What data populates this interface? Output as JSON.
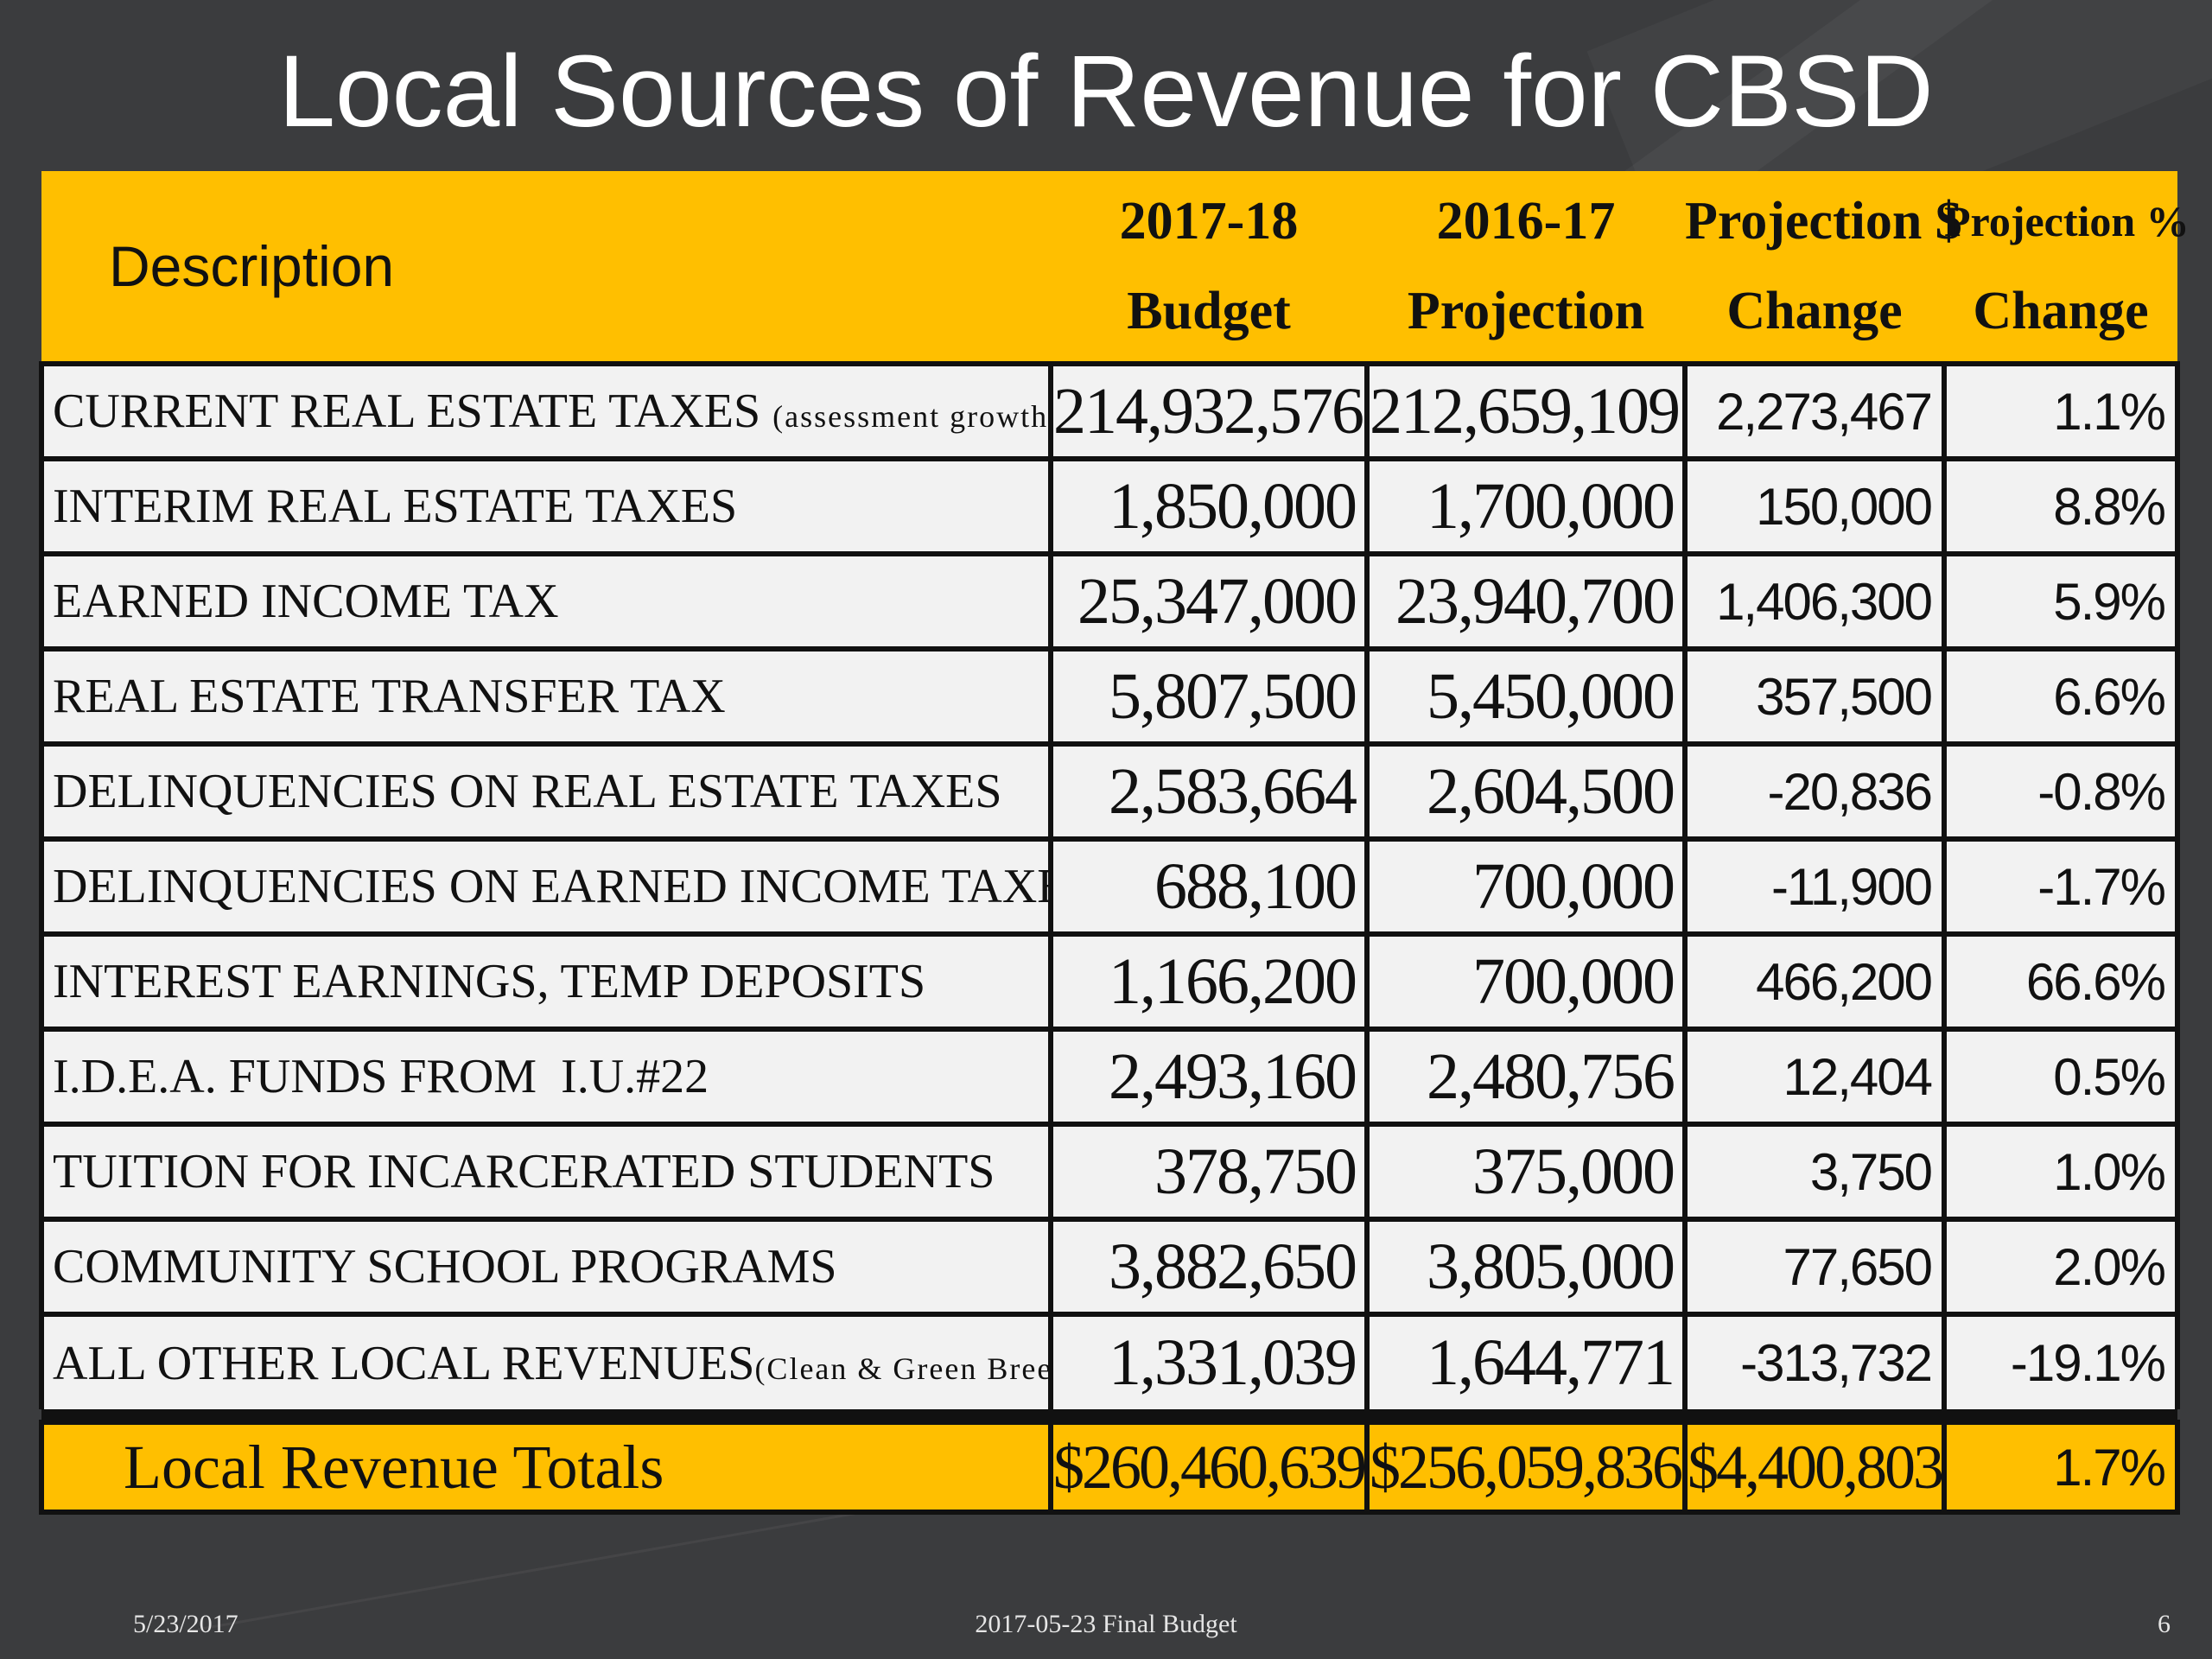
{
  "slide": {
    "title": "Local Sources of Revenue for CBSD"
  },
  "table": {
    "header": {
      "description": "Description",
      "budget_line1": "2017-18",
      "budget_line2": "Budget",
      "projection_line1": "2016-17",
      "projection_line2": "Projection",
      "change_dollar_line1": "Projection $",
      "change_dollar_line2": "Change",
      "change_pct_line1": "Projection %",
      "change_pct_line2": "Change"
    },
    "rows": [
      {
        "description": "CURRENT REAL ESTATE TAXES",
        "note": "(assessment growth)",
        "budget": "214,932,576",
        "projection": "212,659,109",
        "change": "2,273,467",
        "change_pct": "1.1%"
      },
      {
        "description": "INTERIM REAL ESTATE TAXES",
        "note": "",
        "budget": "1,850,000",
        "projection": "1,700,000",
        "change": "150,000",
        "change_pct": "8.8%"
      },
      {
        "description": "EARNED INCOME TAX",
        "note": "",
        "budget": "25,347,000",
        "projection": "23,940,700",
        "change": "1,406,300",
        "change_pct": "5.9%"
      },
      {
        "description": "REAL ESTATE TRANSFER TAX",
        "note": "",
        "budget": "5,807,500",
        "projection": "5,450,000",
        "change": "357,500",
        "change_pct": "6.6%"
      },
      {
        "description": "DELINQUENCIES ON REAL ESTATE TAXES",
        "note": "",
        "budget": "2,583,664",
        "projection": "2,604,500",
        "change": "-20,836",
        "change_pct": "-0.8%"
      },
      {
        "description": "DELINQUENCIES ON EARNED INCOME TAXES",
        "note": "",
        "budget": "688,100",
        "projection": "700,000",
        "change": "-11,900",
        "change_pct": "-1.7%"
      },
      {
        "description": "INTEREST EARNINGS, TEMP DEPOSITS",
        "note": "",
        "budget": "1,166,200",
        "projection": "700,000",
        "change": "466,200",
        "change_pct": "66.6%"
      },
      {
        "description": "I.D.E.A. FUNDS FROM  I.U.#22",
        "note": "",
        "budget": "2,493,160",
        "projection": "2,480,756",
        "change": "12,404",
        "change_pct": "0.5%"
      },
      {
        "description": "TUITION FOR INCARCERATED STUDENTS",
        "note": "",
        "budget": "378,750",
        "projection": "375,000",
        "change": "3,750",
        "change_pct": "1.0%"
      },
      {
        "description": "COMMUNITY SCHOOL PROGRAMS",
        "note": "",
        "budget": "3,882,650",
        "projection": "3,805,000",
        "change": "77,650",
        "change_pct": "2.0%"
      },
      {
        "description": "ALL OTHER LOCAL REVENUES",
        "note": "(Clean & Green Breeches)",
        "budget": "1,331,039",
        "projection": "1,644,771",
        "change": "-313,732",
        "change_pct": "-19.1%"
      }
    ],
    "totals": {
      "label": "Local Revenue Totals",
      "budget": "$260,460,639",
      "projection": "$256,059,836",
      "change": "$4,400,803",
      "change_pct": "1.7%"
    }
  },
  "footer": {
    "date": "5/23/2017",
    "center": "2017-05-23 Final Budget",
    "page": "6"
  },
  "colors": {
    "background": "#3b3c3e",
    "accent": "#ffbf00",
    "cell": "#f2f2f2",
    "border": "#111111"
  }
}
